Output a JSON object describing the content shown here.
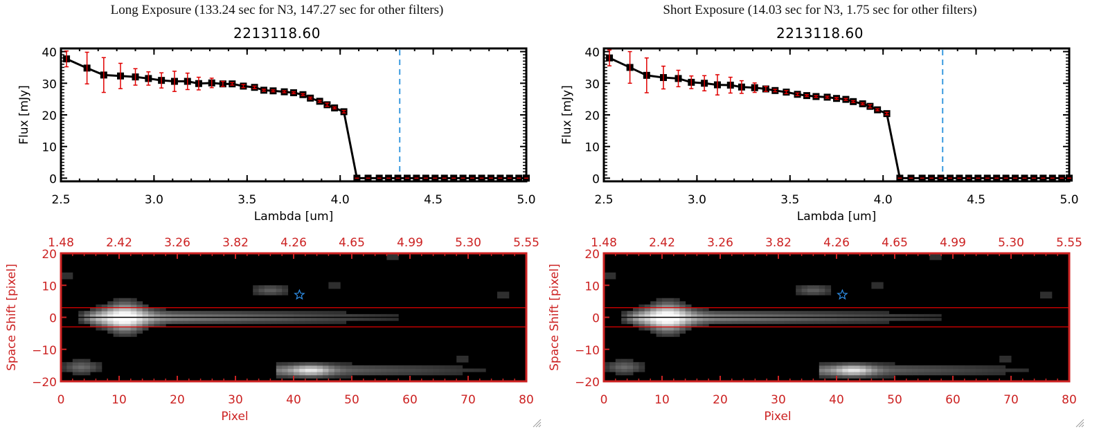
{
  "colors": {
    "axis_top": "#000000",
    "errorbar": "#e00000",
    "marker": "#000000",
    "vline": "#3a9ae0",
    "zero_line": "#e00000",
    "image_axis": "#cc2222",
    "star": "#2f8fe8",
    "aperture": "#e00000"
  },
  "chart_data": [
    {
      "id": "long",
      "type": "line",
      "title": "Long Exposure (133.24 sec for N3, 147.27 sec for other filters)",
      "subtitle": "2213118.60",
      "xlabel": "Lambda [um]",
      "ylabel": "Flux [mJy]",
      "xlim": [
        2.5,
        5.0
      ],
      "ylim": [
        -1,
        41
      ],
      "xticks": [
        "2.5",
        "3.0",
        "3.5",
        "4.0",
        "4.5",
        "5.0"
      ],
      "xtick_values": [
        2.5,
        3.0,
        3.5,
        4.0,
        4.5,
        5.0
      ],
      "yticks": [
        "0",
        "10",
        "20",
        "30",
        "40"
      ],
      "ytick_values": [
        0,
        10,
        20,
        30,
        40
      ],
      "vline_x": 4.32,
      "zero_line_from": 4.1,
      "series": [
        {
          "name": "flux",
          "x": [
            2.53,
            2.64,
            2.73,
            2.82,
            2.9,
            2.97,
            3.04,
            3.11,
            3.18,
            3.24,
            3.31,
            3.37,
            3.42,
            3.48,
            3.54,
            3.59,
            3.64,
            3.7,
            3.75,
            3.8,
            3.84,
            3.89,
            3.93,
            3.97,
            4.02,
            4.09,
            4.15,
            4.21,
            4.26,
            4.31,
            4.36,
            4.41,
            4.46,
            4.51,
            4.56,
            4.61,
            4.66,
            4.71,
            4.76,
            4.81,
            4.86,
            4.91,
            4.96,
            5.0
          ],
          "y": [
            37.7,
            34.8,
            32.6,
            32.3,
            32.0,
            31.5,
            30.9,
            30.6,
            30.6,
            29.9,
            30.1,
            29.8,
            29.8,
            29.1,
            28.7,
            27.8,
            27.6,
            27.3,
            27.0,
            26.4,
            25.3,
            24.3,
            23.2,
            22.2,
            21.0,
            0,
            0,
            0,
            0,
            0,
            0,
            0,
            0,
            0,
            0,
            0,
            0,
            0,
            0,
            0,
            0,
            0,
            0,
            0
          ],
          "yerr": [
            2.5,
            5.0,
            5.5,
            4.0,
            2.6,
            2.1,
            2.4,
            3.2,
            2.6,
            2.0,
            1.5,
            0.8,
            0.4,
            0.5,
            0.4,
            0.3,
            0.3,
            0.3,
            0.3,
            0.3,
            0.3,
            0.3,
            0.5,
            0.3,
            0.4,
            0.0,
            0,
            0,
            0,
            0,
            0,
            0,
            0,
            0,
            0,
            0,
            0,
            0,
            0,
            0,
            0,
            0,
            0,
            0
          ]
        }
      ]
    },
    {
      "id": "short",
      "type": "line",
      "title": "Short Exposure (14.03 sec for N3, 1.75 sec for other filters)",
      "subtitle": "2213118.60",
      "xlabel": "Lambda [um]",
      "ylabel": "Flux [mJy]",
      "xlim": [
        2.5,
        5.0
      ],
      "ylim": [
        -1,
        41
      ],
      "xticks": [
        "2.5",
        "3.0",
        "3.5",
        "4.0",
        "4.5",
        "5.0"
      ],
      "xtick_values": [
        2.5,
        3.0,
        3.5,
        4.0,
        4.5,
        5.0
      ],
      "yticks": [
        "0",
        "10",
        "20",
        "30",
        "40"
      ],
      "ytick_values": [
        0,
        10,
        20,
        30,
        40
      ],
      "vline_x": 4.32,
      "zero_line_from": 4.1,
      "series": [
        {
          "name": "flux",
          "x": [
            2.53,
            2.64,
            2.73,
            2.82,
            2.9,
            2.97,
            3.04,
            3.11,
            3.18,
            3.24,
            3.31,
            3.37,
            3.42,
            3.48,
            3.54,
            3.59,
            3.64,
            3.7,
            3.75,
            3.8,
            3.84,
            3.89,
            3.93,
            3.97,
            4.02,
            4.09,
            4.15,
            4.21,
            4.26,
            4.31,
            4.36,
            4.41,
            4.46,
            4.51,
            4.56,
            4.61,
            4.66,
            4.71,
            4.76,
            4.81,
            4.86,
            4.91,
            4.96,
            5.0
          ],
          "y": [
            38.0,
            35.0,
            32.5,
            31.8,
            31.5,
            30.3,
            30.0,
            29.5,
            29.4,
            28.8,
            28.6,
            28.2,
            27.7,
            27.2,
            26.5,
            26.1,
            25.8,
            25.6,
            25.2,
            24.9,
            24.2,
            23.5,
            22.7,
            21.6,
            20.4,
            0,
            0,
            0,
            0,
            0,
            0,
            0,
            0,
            0,
            0,
            0,
            0,
            0,
            0,
            0,
            0,
            0,
            0,
            0
          ],
          "yerr": [
            2.5,
            5.0,
            5.5,
            3.6,
            2.6,
            2.0,
            2.4,
            3.2,
            2.5,
            2.0,
            1.5,
            0.8,
            0.4,
            0.5,
            0.4,
            0.3,
            0.3,
            0.3,
            0.3,
            0.3,
            0.3,
            0.3,
            0.5,
            0.3,
            0.4,
            0.0,
            0,
            0,
            0,
            0,
            0,
            0,
            0,
            0,
            0,
            0,
            0,
            0,
            0,
            0,
            0,
            0,
            0,
            0
          ]
        }
      ]
    },
    {
      "id": "long-image",
      "type": "heatmap",
      "xlabel": "Pixel",
      "ylabel": "Space Shift [pixel]",
      "xlim": [
        0,
        80
      ],
      "ylim": [
        -20,
        20
      ],
      "xticks": [
        "0",
        "10",
        "20",
        "30",
        "40",
        "50",
        "60",
        "70",
        "80"
      ],
      "yticks": [
        "-20",
        "-10",
        "0",
        "10",
        "20"
      ],
      "top_ticks": [
        "1.48",
        "2.42",
        "3.26",
        "3.82",
        "4.26",
        "4.65",
        "4.99",
        "5.30",
        "5.55"
      ],
      "aperture": [
        -3,
        3
      ],
      "star": [
        41,
        7
      ]
    },
    {
      "id": "short-image",
      "type": "heatmap",
      "xlabel": "Pixel",
      "ylabel": "Space Shift [pixel]",
      "xlim": [
        0,
        80
      ],
      "ylim": [
        -20,
        20
      ],
      "xticks": [
        "0",
        "10",
        "20",
        "30",
        "40",
        "50",
        "60",
        "70",
        "80"
      ],
      "yticks": [
        "-20",
        "-10",
        "0",
        "10",
        "20"
      ],
      "top_ticks": [
        "1.48",
        "2.42",
        "3.26",
        "3.82",
        "4.26",
        "4.65",
        "4.99",
        "5.30",
        "5.55"
      ],
      "aperture": [
        -3,
        3
      ],
      "star": [
        41,
        7
      ]
    }
  ]
}
